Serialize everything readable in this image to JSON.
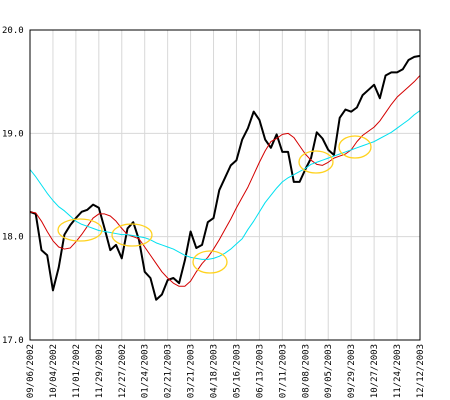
{
  "chart_data": {
    "type": "line",
    "x": [
      0,
      1,
      2,
      3,
      4,
      5,
      6,
      7,
      8,
      9,
      10,
      11,
      12,
      13,
      14,
      15,
      16,
      17,
      18,
      19,
      20,
      21,
      22,
      23,
      24,
      25,
      26,
      27,
      28,
      29,
      30,
      31,
      32,
      33,
      34,
      35,
      36,
      37,
      38,
      39,
      40,
      41,
      42,
      43,
      44,
      45,
      46,
      47,
      48,
      49,
      50,
      51,
      52,
      53,
      54,
      55,
      56,
      57,
      58,
      59,
      60,
      61,
      62,
      63,
      64,
      65,
      66,
      67,
      68
    ],
    "series": [
      {
        "color": "#000000",
        "width": 2,
        "values": [
          18.24,
          18.22,
          17.87,
          17.82,
          17.48,
          17.7,
          18.02,
          18.11,
          18.18,
          18.24,
          18.26,
          18.31,
          18.28,
          18.08,
          17.87,
          17.92,
          17.79,
          18.08,
          18.14,
          17.97,
          17.66,
          17.6,
          17.39,
          17.44,
          17.58,
          17.6,
          17.55,
          17.77,
          18.05,
          17.89,
          17.92,
          18.14,
          18.18,
          18.45,
          18.57,
          18.69,
          18.74,
          18.94,
          19.05,
          19.21,
          19.13,
          18.94,
          18.86,
          18.99,
          18.82,
          18.82,
          18.53,
          18.53,
          18.65,
          18.76,
          19.01,
          18.95,
          18.84,
          18.79,
          19.15,
          19.23,
          19.21,
          19.25,
          19.37,
          19.42,
          19.47,
          19.34,
          19.56,
          19.59,
          19.59,
          19.62,
          19.71,
          19.74,
          19.75
        ]
      },
      {
        "color": "#d40000",
        "width": 1,
        "values": [
          18.24,
          18.23,
          18.15,
          18.05,
          17.96,
          17.9,
          17.88,
          17.89,
          17.95,
          18.02,
          18.1,
          18.18,
          18.22,
          18.22,
          18.2,
          18.15,
          18.08,
          18.02,
          18.0,
          17.98,
          17.9,
          17.82,
          17.74,
          17.66,
          17.6,
          17.55,
          17.52,
          17.52,
          17.57,
          17.66,
          17.74,
          17.8,
          17.88,
          17.97,
          18.07,
          18.17,
          18.28,
          18.38,
          18.48,
          18.6,
          18.72,
          18.83,
          18.92,
          18.95,
          18.99,
          19.0,
          18.96,
          18.88,
          18.8,
          18.74,
          18.7,
          18.69,
          18.72,
          18.76,
          18.78,
          18.8,
          18.84,
          18.92,
          18.98,
          19.02,
          19.06,
          19.12,
          19.2,
          19.28,
          19.35,
          19.4,
          19.45,
          19.5,
          19.56
        ]
      },
      {
        "color": "#00e0f0",
        "width": 1,
        "values": [
          18.65,
          18.58,
          18.5,
          18.42,
          18.35,
          18.29,
          18.25,
          18.2,
          18.15,
          18.12,
          18.1,
          18.08,
          18.06,
          18.05,
          18.04,
          18.03,
          18.02,
          18.02,
          18.01,
          18.0,
          17.99,
          17.97,
          17.94,
          17.92,
          17.9,
          17.88,
          17.85,
          17.82,
          17.8,
          17.79,
          17.78,
          17.78,
          17.79,
          17.81,
          17.84,
          17.88,
          17.93,
          17.98,
          18.07,
          18.15,
          18.24,
          18.33,
          18.4,
          18.47,
          18.53,
          18.57,
          18.6,
          18.63,
          18.66,
          18.7,
          18.72,
          18.74,
          18.76,
          18.78,
          18.8,
          18.82,
          18.84,
          18.86,
          18.88,
          18.9,
          18.92,
          18.95,
          18.98,
          19.01,
          19.05,
          19.09,
          19.13,
          19.18,
          19.22
        ]
      }
    ],
    "xlim": [
      0,
      68
    ],
    "xticks": [
      {
        "value": 0,
        "label": "09/06/2002"
      },
      {
        "value": 4,
        "label": "10/04/2002"
      },
      {
        "value": 8,
        "label": "11/01/2002"
      },
      {
        "value": 12,
        "label": "11/29/2002"
      },
      {
        "value": 16,
        "label": "12/27/2002"
      },
      {
        "value": 20,
        "label": "01/24/2003"
      },
      {
        "value": 24,
        "label": "02/21/2003"
      },
      {
        "value": 28,
        "label": "03/21/2003"
      },
      {
        "value": 32,
        "label": "04/18/2003"
      },
      {
        "value": 36,
        "label": "05/16/2003"
      },
      {
        "value": 40,
        "label": "06/13/2003"
      },
      {
        "value": 44,
        "label": "07/11/2003"
      },
      {
        "value": 48,
        "label": "08/08/2003"
      },
      {
        "value": 52,
        "label": "09/05/2003"
      },
      {
        "value": 56,
        "label": "09/29/2003"
      },
      {
        "value": 60,
        "label": "10/27/2003"
      },
      {
        "value": 64,
        "label": "11/24/2003"
      },
      {
        "value": 68,
        "label": "12/12/2003"
      }
    ],
    "ylim": [
      17,
      20
    ],
    "yticks": [
      {
        "value": 17,
        "label": "17.0"
      },
      {
        "value": 18,
        "label": "18.0"
      },
      {
        "value": 19,
        "label": "19.0"
      },
      {
        "value": 20,
        "label": "20.0"
      }
    ],
    "grid": true
  }
}
